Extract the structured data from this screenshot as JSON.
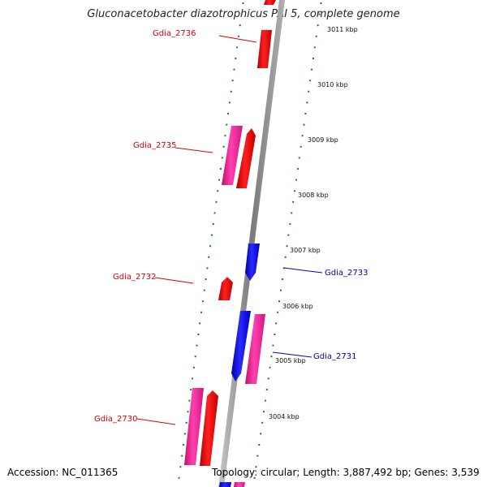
{
  "title": "Gluconacetobacter diazotrophicus PAI 5, complete genome",
  "accession": "Accession: NC_011365",
  "topology": "Topology: circular; Length: 3,887,492 bp; Genes: 3,539",
  "colors": {
    "forward_gene": "#ff0000",
    "forward_gene_alt": "#ff2a9a",
    "reverse_gene": "#1a1aff",
    "tick": "#1f7a1f",
    "backbone": "#909090",
    "label_forward": "#dd0000",
    "label_reverse": "#0000bb"
  },
  "scale_labels": [
    "3011 kbp",
    "3010 kbp",
    "3009 kbp",
    "3008 kbp",
    "3007 kbp",
    "3006 kbp",
    "3005 kbp",
    "3004 kbp"
  ],
  "gene_labels": [
    {
      "text": "Gdia_2736",
      "strand": "forward"
    },
    {
      "text": "Gdia_2735",
      "strand": "forward"
    },
    {
      "text": "Gdia_2733",
      "strand": "reverse"
    },
    {
      "text": "Gdia_2732",
      "strand": "forward"
    },
    {
      "text": "Gdia_2731",
      "strand": "reverse"
    },
    {
      "text": "Gdia_2730",
      "strand": "forward"
    }
  ]
}
